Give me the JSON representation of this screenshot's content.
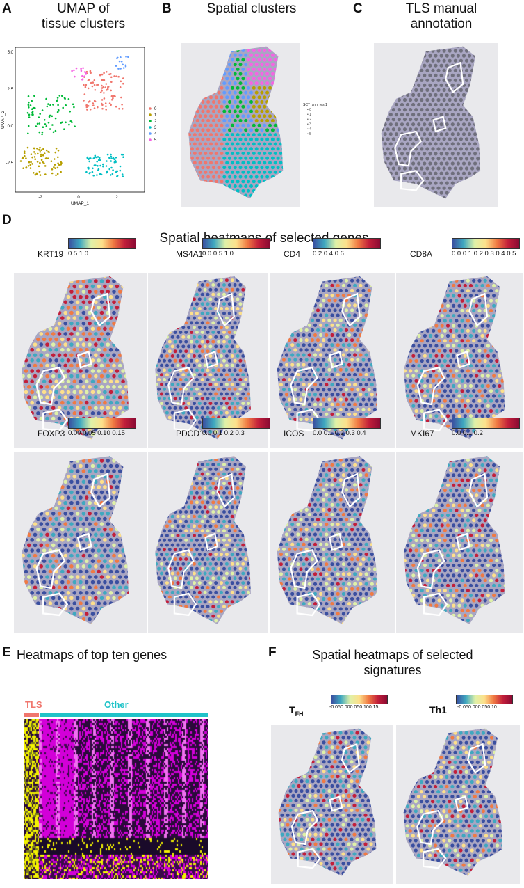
{
  "panels": {
    "A": {
      "label": "A",
      "title_line1": "UMAP of",
      "title_line2": "tissue clusters",
      "xlabel": "UMAP_1",
      "ylabel": "UMAP_2",
      "xticks": [
        "-2",
        "0",
        "2"
      ],
      "yticks": [
        "5.0",
        "2.5",
        "0.0",
        "-2.5"
      ],
      "legend": [
        "0",
        "1",
        "2",
        "3",
        "4",
        "5"
      ],
      "colors": [
        "#f0766d",
        "#b79f00",
        "#00ba38",
        "#00bfc4",
        "#619cff",
        "#f564e3"
      ]
    },
    "B": {
      "label": "B",
      "title": "Spatial clusters",
      "legend_title": "SCT_snn_res.1",
      "legend": [
        "0",
        "1",
        "2",
        "3",
        "4",
        "5"
      ]
    },
    "C": {
      "label": "C",
      "title_line1": "TLS manual",
      "title_line2": "annotation"
    },
    "D": {
      "label": "D",
      "title": "Spatial heatmaps of selected genes",
      "genes": [
        {
          "name": "KRT19",
          "ticks": "0.5          1.0"
        },
        {
          "name": "MS4A1",
          "ticks": "0.0       0.5       1.0"
        },
        {
          "name": "CD4",
          "ticks": "0.2       0.4       0.6"
        },
        {
          "name": "CD8A",
          "ticks": "0.0 0.1 0.2 0.3 0.4 0.5"
        },
        {
          "name": "FOXP3",
          "ticks": "0.00  0.05  0.10  0.15"
        },
        {
          "name": "PDCD1",
          "ticks": "0.0       0.1       0.2       0.3"
        },
        {
          "name": "ICOS",
          "ticks": "0.0 0.1 0.2 0.3 0.4"
        },
        {
          "name": "MKI67",
          "ticks": "0.0          0.1          0.2"
        }
      ]
    },
    "E": {
      "label": "E",
      "title": "Heatmaps of top ten genes",
      "tls_label": "TLS",
      "other_label": "Other"
    },
    "F": {
      "label": "F",
      "title_line1": "Spatial heatmaps of selected",
      "title_line2": "signatures",
      "sigs": [
        {
          "name": "T",
          "sub": "FH",
          "ticks": "-0.050.000.050.100.15"
        },
        {
          "name": "Th1",
          "sub": "",
          "ticks": "-0.050.000.050.10"
        }
      ]
    }
  },
  "colors": {
    "tls": "#f0766d",
    "other": "#1fc3c8",
    "heat_low": "#2a0a3a",
    "heat_mid": "#d200d8",
    "heat_high": "#f2f200"
  }
}
